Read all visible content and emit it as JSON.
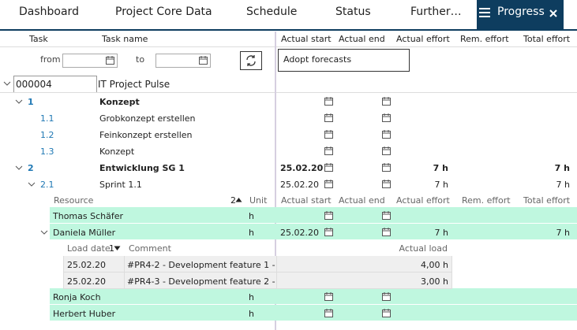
{
  "tabs": [
    "Dashboard",
    "Project Core Data",
    "Schedule",
    "Status",
    "Further…",
    "Progress"
  ],
  "columns": {
    "task": "Task",
    "task_name": "Task name",
    "actual_start": "Actual start",
    "actual_end": "Actual end",
    "actual_effort": "Actual effort",
    "rem_effort": "Rem. effort",
    "total_effort": "Total effort"
  },
  "filter": {
    "from": "from",
    "to": "to",
    "adopt_forecasts": "Adopt forecasts"
  },
  "project": {
    "id": "000004",
    "name": "IT Project Pulse"
  },
  "tasks": [
    {
      "id": "1",
      "name": "Konzept"
    },
    {
      "id": "1.1",
      "name": "Grobkonzept erstellen"
    },
    {
      "id": "1.2",
      "name": "Feinkonzept erstellen"
    },
    {
      "id": "1.3",
      "name": "Konzept"
    },
    {
      "id": "2",
      "name": "Entwicklung SG 1",
      "actual_start": "25.02.20",
      "actual_effort": "7 h",
      "total_effort": "7 h"
    },
    {
      "id": "2.1",
      "name": "Sprint 1.1",
      "actual_start": "25.02.20",
      "actual_effort": "7 h",
      "total_effort": "7 h"
    }
  ],
  "resource_header": {
    "resource": "Resource",
    "sort": "2",
    "unit": "Unit"
  },
  "resources": [
    {
      "name": "Thomas Schäfer",
      "unit": "h"
    },
    {
      "name": "Daniela Müller",
      "unit": "h",
      "actual_start": "25.02.20",
      "actual_effort": "7 h",
      "total_effort": "7 h"
    },
    {
      "name": "Ronja Koch",
      "unit": "h"
    },
    {
      "name": "Herbert Huber",
      "unit": "h"
    }
  ],
  "load_table": {
    "columns": {
      "load_date": "Load date",
      "sort": "1",
      "comment": "Comment",
      "actual_load": "Actual load"
    },
    "rows": [
      [
        "25.02.20",
        "#PR4-2 - Development feature 1 -",
        "4,00 h"
      ],
      [
        "25.02.20",
        "#PR4-3 - Development feature 2 -",
        "3,00 h"
      ]
    ]
  }
}
